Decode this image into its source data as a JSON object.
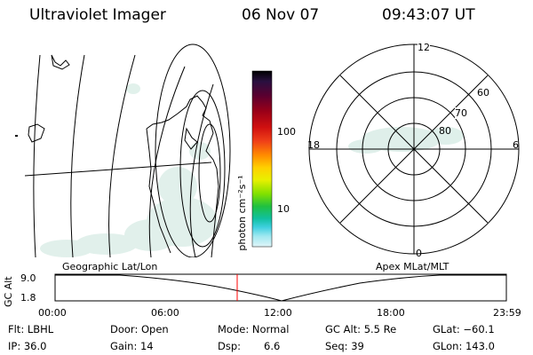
{
  "header": {
    "title": "Ultraviolet Imager",
    "date": "06 Nov 07",
    "time": "09:43:07 UT"
  },
  "colorbar": {
    "unit_label": "photon cm⁻²s⁻¹",
    "ticks": [
      "100",
      "10"
    ],
    "colors": [
      "#000000",
      "#2a1040",
      "#5a0030",
      "#9a0018",
      "#d01010",
      "#f04018",
      "#ff8c00",
      "#ffd000",
      "#e8f000",
      "#80e000",
      "#20c040",
      "#10c0a0",
      "#40d0e0",
      "#a0e8f0",
      "#e0f4f8"
    ]
  },
  "polar": {
    "mlt_labels": {
      "top": "12",
      "bottom": "0",
      "left": "18",
      "right": "6"
    },
    "lat_labels": [
      "60",
      "70",
      "80"
    ]
  },
  "timeline": {
    "left_label": "Geographic Lat/Lon",
    "right_label": "Apex MLat/MLT",
    "axis_title": "GC Alt",
    "y_ticks": [
      "9.0",
      "1.8"
    ],
    "x_ticks": [
      "00:00",
      "06:00",
      "12:00",
      "18:00",
      "23:59"
    ],
    "current_time_marker": "09:43",
    "marker_color": "#ff0000"
  },
  "info": {
    "flt": "Flt: LBHL",
    "door": "Door: Open",
    "mode": "Mode: Normal",
    "gc_alt": "GC Alt: 5.5 Re",
    "glat": "GLat: −60.1",
    "ip": "IP: 36.0",
    "gain": "Gain: 14",
    "dsp_label": "Dsp:",
    "dsp_value": "6.6",
    "seq": "Seq: 39",
    "glon": "GLon: 143.0"
  }
}
